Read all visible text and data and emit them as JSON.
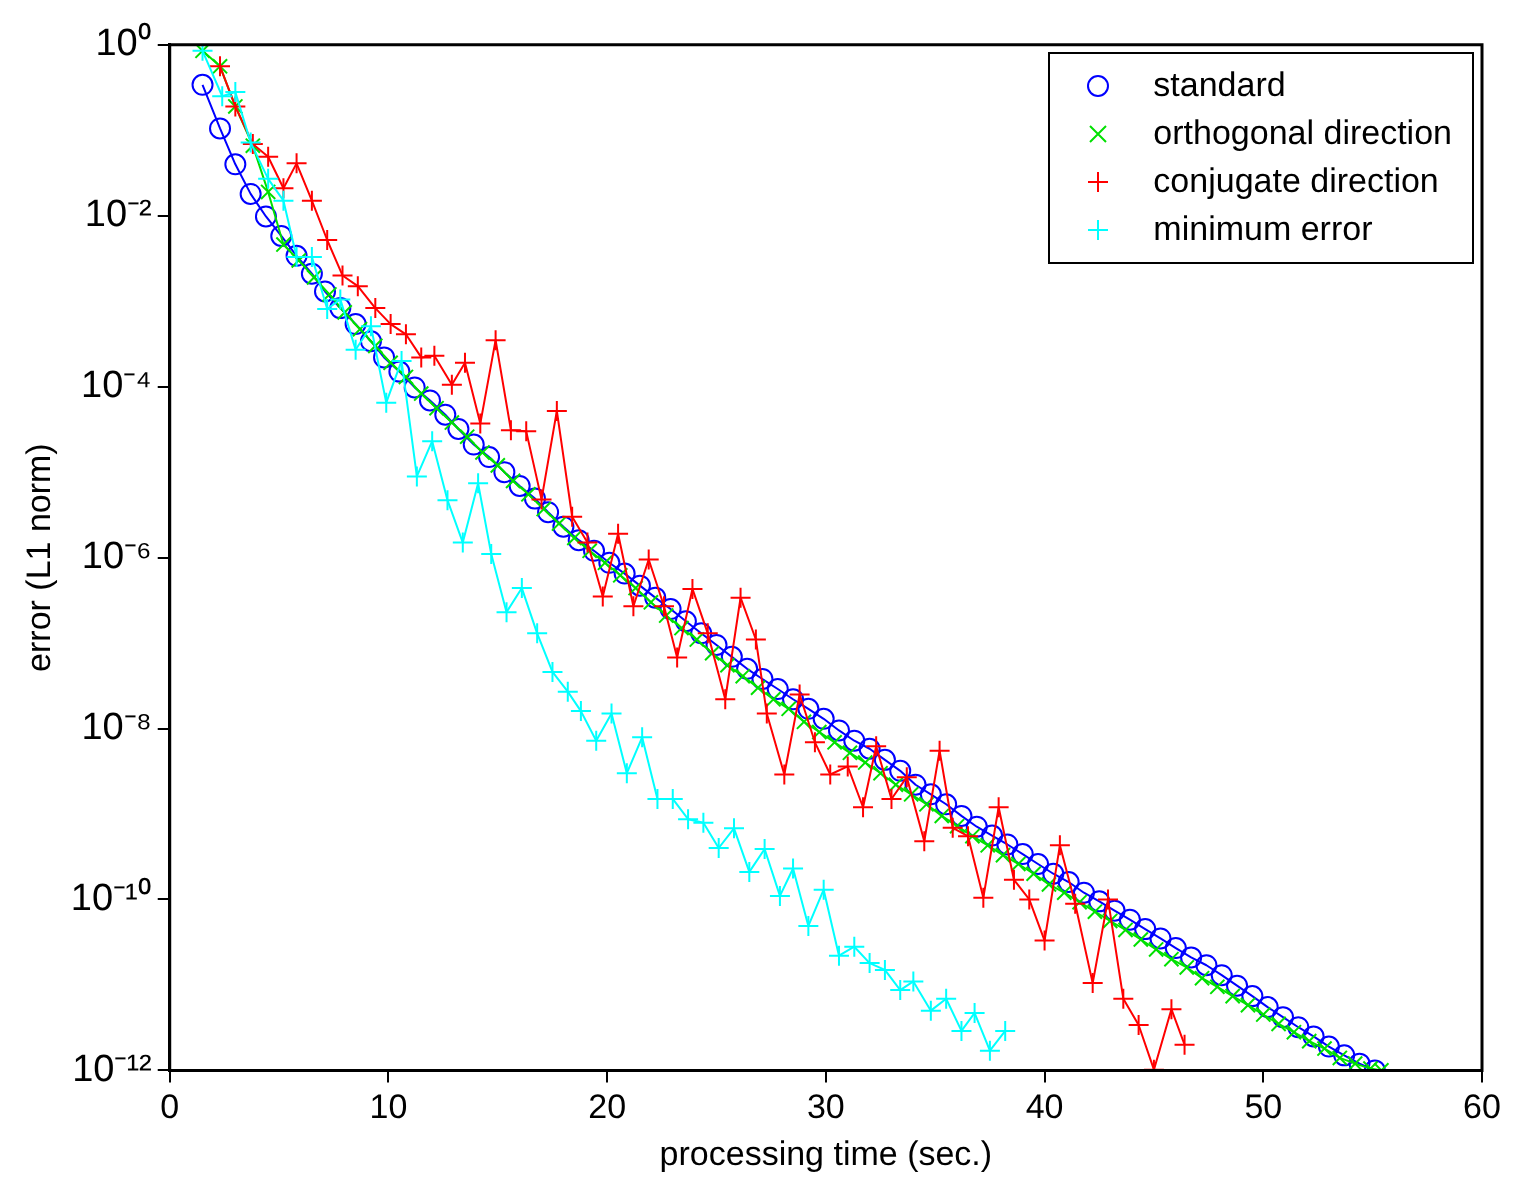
{
  "chart_data": {
    "type": "line",
    "xlabel": "processing time (sec.)",
    "ylabel": "error (L1 norm)",
    "log": "y",
    "grid": false,
    "legend": "top right",
    "line_style": "solid",
    "xlim": [
      0,
      60
    ],
    "xticks": [
      0,
      10,
      20,
      30,
      40,
      50,
      60
    ],
    "ylim": [
      1e-12,
      1
    ],
    "yticks": [
      {
        "value": 1,
        "label": "10⁰"
      },
      {
        "value": 0.01,
        "label": "10⁻²"
      },
      {
        "value": 0.0001,
        "label": "10⁻⁴"
      },
      {
        "value": 1e-06,
        "label": "10⁻⁶"
      },
      {
        "value": 1e-08,
        "label": "10⁻⁸"
      },
      {
        "value": 1e-10,
        "label": "10⁻¹⁰"
      },
      {
        "value": 1e-12,
        "label": "10⁻¹²"
      }
    ],
    "series": [
      {
        "name": "standard",
        "color": "#0000ff",
        "marker": "circle",
        "x": [
          1.5,
          2.3,
          3.0,
          3.7,
          4.4,
          5.1,
          5.8,
          6.5,
          7.1,
          7.8,
          8.5,
          9.2,
          9.8,
          10.5,
          11.2,
          11.9,
          12.6,
          13.2,
          13.9,
          14.6,
          15.3,
          16.0,
          16.7,
          17.3,
          18.0,
          18.7,
          19.4,
          20.1,
          20.8,
          21.5,
          22.2,
          22.9,
          23.6,
          24.3,
          25.0,
          25.7,
          26.4,
          27.1,
          27.8,
          28.5,
          29.2,
          29.9,
          30.6,
          31.3,
          32.0,
          32.7,
          33.4,
          34.1,
          34.8,
          35.5,
          36.2,
          36.9,
          37.6,
          38.3,
          39.0,
          39.7,
          40.4,
          41.1,
          41.8,
          42.5,
          43.2,
          43.9,
          44.6,
          45.3,
          46.0,
          46.7,
          47.4,
          48.1,
          48.8,
          49.5,
          50.2,
          50.9,
          51.6,
          52.3,
          53.0,
          53.7,
          54.4,
          55.1
        ],
        "values": [
          0.34,
          0.105,
          0.04,
          0.018,
          0.0098,
          0.0058,
          0.0034,
          0.0021,
          0.0013,
          0.00083,
          0.00054,
          0.00034,
          0.00022,
          0.00015,
          9.8e-05,
          6.9e-05,
          4.7e-05,
          3.2e-05,
          2.1e-05,
          1.5e-05,
          1e-05,
          6.9e-06,
          4.9e-06,
          3.4e-06,
          2.3e-06,
          1.6e-06,
          1.2e-06,
          8.7e-07,
          6.5e-07,
          4.7e-07,
          3.4e-07,
          2.5e-07,
          1.8e-07,
          1.3e-07,
          9.5e-08,
          6.9e-08,
          5e-08,
          3.8e-08,
          2.9e-08,
          2.2e-08,
          1.7e-08,
          1.3e-08,
          9.5e-09,
          7.2e-09,
          5.8e-09,
          4.3e-09,
          3.2e-09,
          2.2e-09,
          1.7e-09,
          1.3e-09,
          9.5e-10,
          7.1e-10,
          5.6e-10,
          4.4e-10,
          3.4e-10,
          2.6e-10,
          2e-10,
          1.6e-10,
          1.2e-10,
          9.5e-11,
          7.4e-11,
          5.8e-11,
          4.5e-11,
          3.5e-11,
          2.7e-11,
          2.1e-11,
          1.7e-11,
          1.3e-11,
          9.8e-12,
          7.4e-12,
          5.5e-12,
          4.2e-12,
          3.2e-12,
          2.5e-12,
          1.9e-12,
          1.5e-12,
          1.2e-12,
          1e-12
        ]
      },
      {
        "name": "orthogonal direction",
        "color": "#00e000",
        "marker": "x",
        "x": [
          1.5,
          2.3,
          3.0,
          3.8,
          4.5,
          5.2,
          5.9,
          6.6,
          7.3,
          8.0,
          8.7,
          9.4,
          10.1,
          10.8,
          11.5,
          12.2,
          12.9,
          13.6,
          14.3,
          15.0,
          15.7,
          16.4,
          17.1,
          17.8,
          18.5,
          19.2,
          19.9,
          20.6,
          21.3,
          22.0,
          22.7,
          23.4,
          24.1,
          24.8,
          25.5,
          26.2,
          26.9,
          27.6,
          28.3,
          29.0,
          29.7,
          30.4,
          31.1,
          31.8,
          32.5,
          33.2,
          33.9,
          34.6,
          35.3,
          36.0,
          36.7,
          37.4,
          38.1,
          38.8,
          39.5,
          40.2,
          40.9,
          41.6,
          42.3,
          43.0,
          43.7,
          44.4,
          45.1,
          45.8,
          46.5,
          47.2,
          47.9,
          48.6,
          49.3,
          50.0,
          50.7,
          51.4,
          52.1,
          52.8,
          53.5,
          54.2,
          54.9,
          55.4
        ],
        "values": [
          0.85,
          0.56,
          0.19,
          0.066,
          0.019,
          0.0046,
          0.003,
          0.0019,
          0.0012,
          0.00074,
          0.00047,
          0.0003,
          0.00019,
          0.00013,
          8.3e-05,
          5.6e-05,
          3.8e-05,
          2.6e-05,
          1.7e-05,
          1.2e-05,
          7.9e-06,
          5.5e-06,
          3.7e-06,
          2.5e-06,
          1.7e-06,
          1.2e-06,
          8.7e-07,
          6.2e-07,
          4.4e-07,
          3e-07,
          2.1e-07,
          1.5e-07,
          1.1e-07,
          7.6e-08,
          5.5e-08,
          4.1e-08,
          3e-08,
          2.2e-08,
          1.7e-08,
          1.2e-08,
          9.1e-09,
          6.9e-09,
          5.2e-09,
          4e-09,
          3e-09,
          2.2e-09,
          1.7e-09,
          1.3e-09,
          9.5e-10,
          7.2e-10,
          5.5e-10,
          4.3e-10,
          3.3e-10,
          2.6e-10,
          2e-10,
          1.5e-10,
          1.2e-10,
          9.3e-11,
          7.2e-11,
          5.6e-11,
          4.4e-11,
          3.4e-11,
          2.6e-11,
          2e-11,
          1.6e-11,
          1.2e-11,
          9.5e-12,
          7.4e-12,
          5.8e-12,
          4.5e-12,
          3.5e-12,
          2.8e-12,
          2.2e-12,
          1.8e-12,
          1.4e-12,
          1.2e-12,
          1.05e-12,
          1e-12
        ]
      },
      {
        "name": "conjugate direction",
        "color": "#ff0000",
        "marker": "cross",
        "x": [
          2.3,
          3.0,
          3.8,
          4.5,
          5.2,
          5.8,
          6.5,
          7.2,
          7.9,
          8.6,
          9.4,
          10.1,
          10.8,
          11.5,
          12.1,
          12.9,
          13.5,
          14.2,
          14.9,
          15.6,
          16.3,
          17.0,
          17.7,
          18.4,
          19.1,
          19.8,
          20.5,
          21.2,
          21.9,
          22.6,
          23.2,
          23.9,
          24.6,
          25.4,
          26.1,
          26.8,
          27.3,
          28.1,
          28.8,
          29.5,
          30.2,
          31.0,
          31.7,
          32.3,
          33.0,
          33.7,
          34.5,
          35.2,
          35.8,
          36.5,
          37.2,
          37.9,
          38.6,
          39.3,
          40.0,
          40.7,
          41.4,
          42.2,
          42.9,
          43.6,
          44.3,
          45.0,
          45.8,
          46.4
        ],
        "values": [
          0.56,
          0.19,
          0.069,
          0.049,
          0.021,
          0.041,
          0.015,
          0.0052,
          0.002,
          0.0015,
          0.00083,
          0.00054,
          0.00041,
          0.00022,
          0.00023,
          0.000105,
          0.00019,
          3.7e-05,
          0.00035,
          3.1e-05,
          3e-05,
          4.8e-06,
          5.2e-05,
          3e-06,
          1.5e-06,
          3.5e-07,
          1.9e-06,
          2.7e-07,
          9.5e-07,
          2.7e-07,
          6.8e-08,
          4.3e-07,
          1.3e-07,
          2.2e-08,
          3.4e-07,
          1.1e-07,
          1.5e-08,
          2.9e-09,
          2.5e-08,
          6.9e-09,
          2.9e-09,
          3.6e-09,
          1.2e-09,
          6.2e-09,
          1.5e-09,
          2.7e-09,
          4.8e-10,
          5.5e-09,
          6.9e-10,
          5.5e-10,
          1.05e-10,
          1.2e-09,
          1.7e-10,
          1e-10,
          3.3e-11,
          4.3e-10,
          8.9e-11,
          1.05e-11,
          1e-10,
          6.9e-12,
          3.4e-12,
          1.02e-12,
          5.2e-12,
          2e-12
        ]
      },
      {
        "name": "minimum error",
        "color": "#00ffff",
        "marker": "cross",
        "x": [
          1.5,
          2.4,
          3.0,
          3.7,
          4.5,
          5.2,
          5.8,
          6.5,
          7.2,
          7.8,
          8.5,
          9.2,
          9.9,
          10.6,
          11.3,
          12.0,
          12.7,
          13.4,
          14.1,
          14.7,
          15.4,
          16.1,
          16.8,
          17.5,
          18.2,
          18.8,
          19.5,
          20.2,
          20.9,
          21.6,
          22.3,
          23.0,
          23.7,
          24.4,
          25.1,
          25.8,
          26.5,
          27.2,
          27.9,
          28.5,
          29.2,
          29.9,
          30.6,
          31.3,
          32.0,
          32.7,
          33.4,
          34.0,
          34.8,
          35.5,
          36.2,
          36.8,
          37.5,
          38.2
        ],
        "values": [
          0.85,
          0.25,
          0.28,
          0.072,
          0.027,
          0.015,
          0.0033,
          0.0033,
          0.00081,
          0.00105,
          0.00027,
          0.00051,
          6.5e-05,
          0.0002,
          8.9e-06,
          2.3e-05,
          4.7e-06,
          1.5e-06,
          7.4e-06,
          1.1e-06,
          2.3e-07,
          4.4e-07,
          1.3e-07,
          4.6e-08,
          2.7e-08,
          1.6e-08,
          7.2e-09,
          1.5e-08,
          3e-09,
          7.9e-09,
          1.5e-09,
          1.5e-09,
          8.7e-10,
          7.9e-10,
          4e-10,
          6.8e-10,
          2.1e-10,
          3.9e-10,
          1.1e-10,
          2.3e-10,
          4.9e-11,
          1.3e-10,
          2.2e-11,
          2.8e-11,
          1.8e-11,
          1.5e-11,
          8.7e-12,
          1.1e-11,
          5e-12,
          6.9e-12,
          2.9e-12,
          4.7e-12,
          1.7e-12,
          2.9e-12
        ]
      }
    ]
  }
}
